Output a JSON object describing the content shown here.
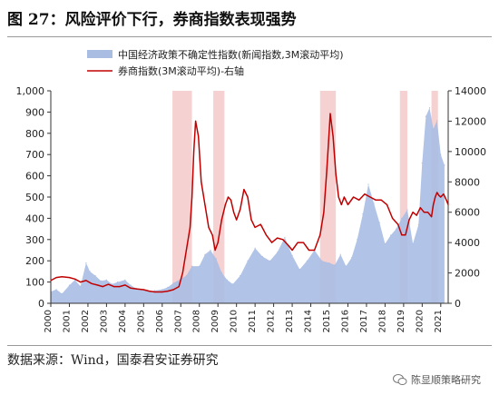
{
  "title": "图 27：风险评价下行，券商指数表现强势",
  "source": "数据来源：Wind，国泰君安证券研究",
  "watermark": "陈显顺策略研究",
  "colors": {
    "area": "#a9bde3",
    "line": "#c00000",
    "shade": "#f4c9c9"
  },
  "chart_data": {
    "type": "area",
    "x_label": "",
    "y_left": {
      "min": 0,
      "max": 1000,
      "ticks": [
        "0",
        "100",
        "200",
        "300",
        "400",
        "500",
        "600",
        "700",
        "800",
        "900",
        "1,000"
      ]
    },
    "y_right": {
      "min": 0,
      "max": 14000,
      "ticks": [
        "0",
        "2000",
        "4000",
        "6000",
        "8000",
        "10000",
        "12000",
        "14000"
      ]
    },
    "x_ticks": [
      "2000",
      "2001",
      "2002",
      "2003",
      "2004",
      "2005",
      "2006",
      "2007",
      "2008",
      "2009",
      "2010",
      "2011",
      "2012",
      "2013",
      "2014",
      "2015",
      "2016",
      "2017",
      "2018",
      "2019",
      "2020",
      "2021"
    ],
    "x_range": [
      2000,
      2021.4
    ],
    "shaded_periods": [
      [
        2006.55,
        2007.6
      ],
      [
        2008.75,
        2009.35
      ],
      [
        2014.5,
        2015.35
      ],
      [
        2018.8,
        2019.2
      ],
      [
        2020.5,
        2020.85
      ]
    ],
    "series": [
      {
        "name": "中国经济政策不确定性指数(新闻指数,3M滚动平均)",
        "axis": "left",
        "style": "area",
        "x": [
          2000.0,
          2000.3,
          2000.6,
          2001.0,
          2001.3,
          2001.6,
          2001.9,
          2002.1,
          2002.4,
          2002.7,
          2003.0,
          2003.3,
          2003.6,
          2004.0,
          2004.3,
          2004.6,
          2005.0,
          2005.3,
          2005.6,
          2006.0,
          2006.3,
          2006.6,
          2007.0,
          2007.3,
          2007.6,
          2008.0,
          2008.3,
          2008.6,
          2008.9,
          2009.2,
          2009.5,
          2009.8,
          2010.2,
          2010.6,
          2011.0,
          2011.4,
          2011.8,
          2012.2,
          2012.6,
          2013.0,
          2013.4,
          2013.8,
          2014.2,
          2014.6,
          2015.0,
          2015.3,
          2015.6,
          2015.9,
          2016.2,
          2016.5,
          2016.8,
          2017.1,
          2017.4,
          2017.7,
          2018.0,
          2018.3,
          2018.6,
          2018.9,
          2019.2,
          2019.5,
          2019.8,
          2020.0,
          2020.2,
          2020.4,
          2020.6,
          2020.8,
          2021.0,
          2021.2
        ],
        "values": [
          55,
          65,
          45,
          85,
          110,
          80,
          190,
          150,
          130,
          105,
          110,
          90,
          100,
          110,
          85,
          70,
          65,
          55,
          60,
          65,
          75,
          95,
          115,
          130,
          175,
          175,
          230,
          250,
          210,
          145,
          110,
          90,
          130,
          200,
          260,
          220,
          200,
          240,
          310,
          225,
          160,
          200,
          250,
          200,
          190,
          180,
          230,
          175,
          215,
          300,
          420,
          560,
          470,
          380,
          280,
          320,
          350,
          400,
          440,
          280,
          370,
          660,
          880,
          920,
          820,
          860,
          700,
          650
        ]
      },
      {
        "name": "券商指数(3M滚动平均)-右轴",
        "axis": "right",
        "style": "line",
        "x": [
          2000.0,
          2000.3,
          2000.6,
          2001.0,
          2001.3,
          2001.6,
          2001.9,
          2002.2,
          2002.5,
          2002.8,
          2003.1,
          2003.4,
          2003.7,
          2004.0,
          2004.3,
          2004.6,
          2005.0,
          2005.3,
          2005.6,
          2006.0,
          2006.3,
          2006.6,
          2006.9,
          2007.1,
          2007.3,
          2007.5,
          2007.6,
          2007.7,
          2007.8,
          2007.95,
          2008.1,
          2008.3,
          2008.5,
          2008.7,
          2008.85,
          2009.0,
          2009.2,
          2009.4,
          2009.55,
          2009.7,
          2009.85,
          2010.0,
          2010.2,
          2010.4,
          2010.6,
          2010.8,
          2011.0,
          2011.3,
          2011.6,
          2011.9,
          2012.2,
          2012.5,
          2012.8,
          2013.0,
          2013.3,
          2013.6,
          2013.9,
          2014.2,
          2014.5,
          2014.7,
          2014.85,
          2014.95,
          2015.05,
          2015.2,
          2015.35,
          2015.5,
          2015.65,
          2015.8,
          2016.0,
          2016.3,
          2016.6,
          2016.9,
          2017.2,
          2017.5,
          2017.8,
          2018.1,
          2018.4,
          2018.7,
          2018.9,
          2019.1,
          2019.3,
          2019.5,
          2019.7,
          2019.9,
          2020.1,
          2020.3,
          2020.5,
          2020.6,
          2020.7,
          2020.8,
          2020.9,
          2021.0,
          2021.15,
          2021.3,
          2021.4
        ],
        "values": [
          1500,
          1700,
          1750,
          1700,
          1600,
          1400,
          1500,
          1300,
          1200,
          1100,
          1250,
          1100,
          1100,
          1200,
          1000,
          950,
          900,
          800,
          750,
          750,
          800,
          900,
          1100,
          2000,
          3500,
          5000,
          7000,
          10000,
          12000,
          11000,
          8000,
          6500,
          5000,
          4500,
          3500,
          4000,
          5500,
          6500,
          7000,
          6800,
          6000,
          5500,
          6200,
          7500,
          7000,
          5500,
          5000,
          5200,
          4500,
          4000,
          4300,
          4200,
          3800,
          3500,
          4000,
          4000,
          3500,
          3500,
          4500,
          6000,
          8500,
          10500,
          12500,
          11000,
          8500,
          7000,
          6500,
          7000,
          6500,
          7000,
          6800,
          7200,
          7000,
          6800,
          6800,
          6500,
          5600,
          5200,
          4500,
          4500,
          5500,
          6000,
          5800,
          6300,
          6000,
          6000,
          5700,
          6500,
          7000,
          7300,
          7100,
          7000,
          7200,
          6800,
          6500
        ]
      }
    ]
  }
}
